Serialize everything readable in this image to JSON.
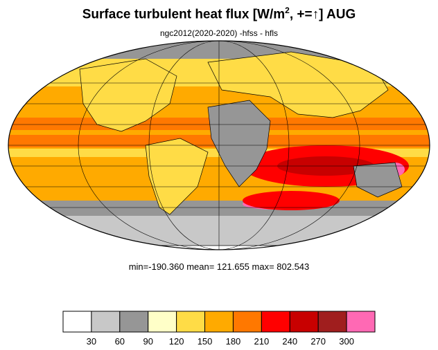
{
  "title": {
    "main": "Surface turbulent heat flux [W/m",
    "sup": "2",
    "tail": ", +=↑]  AUG"
  },
  "subtitle": "ngc2012(2020-2020)     -hfss - hfls",
  "stats": "min=-190.360   mean= 121.655   max= 802.543",
  "colorbar": {
    "colors": [
      "#ffffff",
      "#c8c8c8",
      "#969696",
      "#ffffc8",
      "#ffdc46",
      "#ffaa00",
      "#ff7800",
      "#ff0000",
      "#c80000",
      "#a01e1e",
      "#ff69b4"
    ],
    "labels": [
      "30",
      "60",
      "90",
      "120",
      "150",
      "180",
      "210",
      "240",
      "270",
      "300"
    ]
  },
  "map": {
    "ocean_color": "#ffdc46",
    "land_color": "#ffffff",
    "coast_color": "#000000"
  }
}
